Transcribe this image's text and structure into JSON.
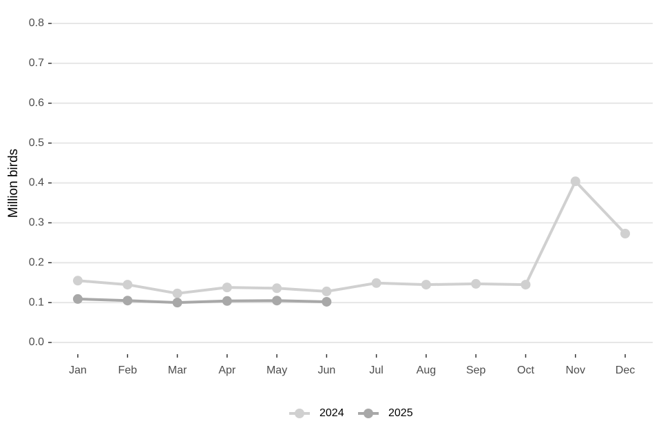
{
  "chart_data": {
    "type": "line",
    "y_label": "Million birds",
    "categories": [
      "Jan",
      "Feb",
      "Mar",
      "Apr",
      "May",
      "Jun",
      "Jul",
      "Aug",
      "Sep",
      "Oct",
      "Nov",
      "Dec"
    ],
    "series": [
      {
        "name": "2024",
        "color": "#d0d0d0",
        "values": [
          0.155,
          0.145,
          0.123,
          0.138,
          0.136,
          0.128,
          0.149,
          0.145,
          0.147,
          0.145,
          0.404,
          0.273
        ]
      },
      {
        "name": "2025",
        "color": "#a8a8a8",
        "values": [
          0.109,
          0.105,
          0.1,
          0.104,
          0.105,
          0.102,
          null,
          null,
          null,
          null,
          null,
          null
        ]
      }
    ],
    "ylim": [
      0,
      0.8
    ],
    "yticks": [
      {
        "value": 0,
        "label": "0.0"
      },
      0.1,
      0.2,
      0.3,
      0.4,
      0.5,
      0.6,
      0.7,
      0.8
    ],
    "grid": true,
    "legend": "bottom"
  }
}
